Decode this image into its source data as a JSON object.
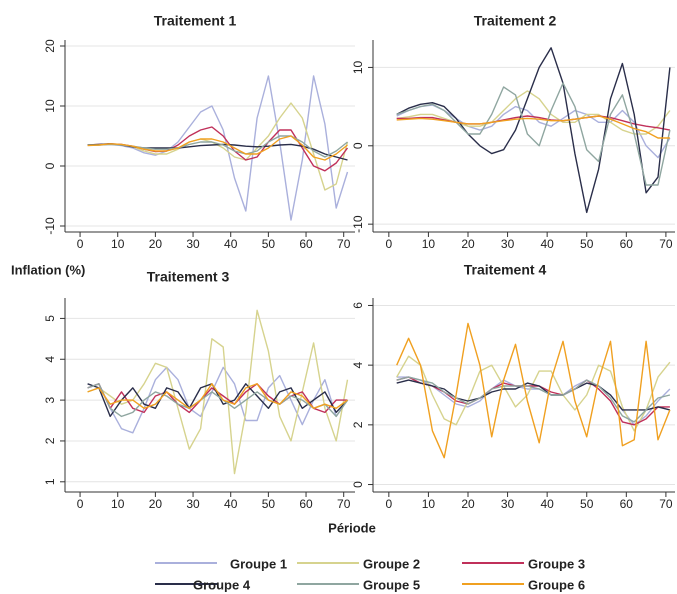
{
  "chart_data": [
    {
      "type": "line",
      "title": "Traitement 1",
      "x": [
        2,
        5,
        8,
        11,
        14,
        17,
        20,
        23,
        26,
        29,
        32,
        35,
        38,
        41,
        44,
        47,
        50,
        53,
        56,
        59,
        62,
        65,
        68,
        71
      ],
      "xlim": [
        -4,
        73
      ],
      "xticks": [
        0,
        10,
        20,
        30,
        40,
        50,
        60,
        70
      ],
      "ylim": [
        -11,
        21
      ],
      "yticks": [
        -10,
        0,
        10,
        20
      ],
      "grid": true,
      "series": [
        {
          "name": "Groupe 1",
          "color": "#aab0dc",
          "values": [
            3.5,
            3.5,
            3.6,
            3.4,
            3,
            2.2,
            1.8,
            2.5,
            4,
            6.5,
            9,
            10,
            6,
            -2,
            -7.5,
            8,
            15,
            4,
            -9,
            1,
            15,
            7,
            -7,
            -1
          ]
        },
        {
          "name": "Groupe 2",
          "color": "#d6d38e",
          "values": [
            3.5,
            3.5,
            3.7,
            3.6,
            3.2,
            2.5,
            2,
            2,
            2.8,
            4,
            4.5,
            4,
            3,
            1.5,
            1,
            3,
            5,
            8,
            10.5,
            8,
            2,
            -4,
            -3,
            4
          ]
        },
        {
          "name": "Groupe 3",
          "color": "#c0305a",
          "values": [
            3.5,
            3.6,
            3.7,
            3.6,
            3.3,
            2.8,
            2.4,
            2.5,
            3.5,
            5,
            6,
            6.5,
            5,
            2.5,
            1,
            1.5,
            4,
            6,
            6,
            3,
            0,
            -0.8,
            0.5,
            3
          ]
        },
        {
          "name": "Groupe 4",
          "color": "#2a2e4a",
          "values": [
            3.5,
            3.6,
            3.7,
            3.5,
            3.2,
            3,
            3,
            3,
            3,
            3.2,
            3.4,
            3.5,
            3.6,
            3.5,
            3.3,
            3.2,
            3.3,
            3.5,
            3.6,
            3.3,
            2.8,
            2,
            1.5,
            1
          ]
        },
        {
          "name": "Groupe 5",
          "color": "#8fa6a0",
          "values": [
            3.5,
            3.5,
            3.6,
            3.5,
            3.3,
            3,
            2.8,
            2.8,
            3,
            3.6,
            4,
            4,
            3.5,
            2.5,
            2,
            2.5,
            4,
            5,
            5,
            4,
            2.5,
            1.5,
            2.5,
            4
          ]
        },
        {
          "name": "Groupe 6",
          "color": "#f0a020",
          "values": [
            3.4,
            3.5,
            3.7,
            3.6,
            3.3,
            2.8,
            2.5,
            2.5,
            3,
            4,
            4.5,
            4.5,
            4,
            3,
            2,
            2,
            3,
            4.5,
            5,
            3.5,
            1.5,
            1,
            2,
            3.5
          ]
        }
      ]
    },
    {
      "type": "line",
      "title": "Traitement 2",
      "x": [
        2,
        5,
        8,
        11,
        14,
        17,
        20,
        23,
        26,
        29,
        32,
        35,
        38,
        41,
        44,
        47,
        50,
        53,
        56,
        59,
        62,
        65,
        68,
        71
      ],
      "xlim": [
        -4,
        72.3
      ],
      "xticks": [
        0,
        10,
        20,
        30,
        40,
        50,
        60,
        70
      ],
      "ylim": [
        -11,
        13.5
      ],
      "yticks": [
        -10,
        0,
        10
      ],
      "grid": true,
      "series": [
        {
          "color": "#aab0dc",
          "values": [
            3.8,
            4.5,
            5,
            5.2,
            4.5,
            3.5,
            2.5,
            2,
            2.5,
            4,
            5,
            4.5,
            3,
            2.5,
            3.5,
            4.5,
            4,
            3,
            3,
            4.5,
            3,
            0,
            -1.5,
            1
          ]
        },
        {
          "color": "#d6d38e",
          "values": [
            3.5,
            3.7,
            4,
            4,
            3.5,
            3,
            2.5,
            2.5,
            3,
            4.5,
            6,
            7,
            6,
            4,
            3,
            3,
            4,
            4,
            3,
            2,
            1.5,
            1.5,
            2.5,
            4.5
          ]
        },
        {
          "color": "#c0305a",
          "values": [
            3.5,
            3.5,
            3.6,
            3.6,
            3.3,
            3,
            2.8,
            2.8,
            3,
            3.3,
            3.6,
            3.8,
            3.6,
            3.3,
            3.2,
            3.4,
            3.6,
            3.8,
            3.6,
            3.2,
            2.8,
            2.5,
            2.3,
            2
          ]
        },
        {
          "color": "#2a2e4a",
          "values": [
            4,
            4.8,
            5.3,
            5.5,
            5,
            3.5,
            1.5,
            0,
            -1,
            -0.5,
            2,
            6,
            10,
            12.5,
            8,
            -1,
            -8.5,
            -3,
            6,
            10.5,
            4,
            -6,
            -4,
            10
          ]
        },
        {
          "color": "#8fa6a0",
          "values": [
            4,
            4.5,
            5,
            5.3,
            4.5,
            3,
            1.5,
            1.5,
            4,
            7.5,
            6.5,
            1.5,
            0,
            4.5,
            8,
            5,
            -0.5,
            -2,
            4,
            6.5,
            1.5,
            -5,
            -5,
            2
          ]
        },
        {
          "color": "#f0a020",
          "values": [
            3.3,
            3.4,
            3.5,
            3.4,
            3.2,
            3,
            2.8,
            2.8,
            3,
            3.2,
            3.4,
            3.5,
            3.4,
            3.2,
            3.2,
            3.4,
            3.6,
            3.8,
            3.4,
            2.8,
            2.2,
            1.8,
            1,
            1
          ]
        }
      ]
    },
    {
      "type": "line",
      "title": "Traitement 3",
      "ylabel": "Inflation (%)",
      "xlabel": "Période",
      "x": [
        2,
        5,
        8,
        11,
        14,
        17,
        20,
        23,
        26,
        29,
        32,
        35,
        38,
        41,
        44,
        47,
        50,
        53,
        56,
        59,
        62,
        65,
        68,
        71
      ],
      "xlim": [
        -4,
        73
      ],
      "xticks": [
        0,
        10,
        20,
        30,
        40,
        50,
        60,
        70
      ],
      "ylim": [
        0.75,
        5.5
      ],
      "yticks": [
        1,
        2,
        3,
        4,
        5
      ],
      "grid": true,
      "series": [
        {
          "color": "#aab0dc",
          "values": [
            3.3,
            3.4,
            2.8,
            2.3,
            2.2,
            2.8,
            3.5,
            3.8,
            3.5,
            2.8,
            2.6,
            3.2,
            3.8,
            3.4,
            2.5,
            2.5,
            3.3,
            3.6,
            3,
            2.4,
            3,
            3.5,
            2.6,
            3
          ]
        },
        {
          "color": "#d6d38e",
          "values": [
            3.2,
            3.3,
            3.1,
            2.9,
            3,
            3.4,
            3.9,
            3.8,
            2.8,
            1.8,
            2.3,
            4.5,
            4.3,
            1.2,
            2.7,
            5.2,
            4.2,
            2.6,
            2,
            3.2,
            4.4,
            2.8,
            2,
            3.5
          ]
        },
        {
          "color": "#c0305a",
          "values": [
            3.3,
            3.4,
            2.8,
            3.2,
            2.8,
            2.7,
            3.1,
            3.2,
            2.9,
            2.7,
            3,
            3.3,
            3.1,
            2.9,
            3.2,
            3.4,
            3.1,
            2.9,
            3.1,
            3.2,
            2.8,
            2.7,
            3,
            3
          ]
        },
        {
          "color": "#2a2e4a",
          "values": [
            3.4,
            3.3,
            2.6,
            3,
            3.3,
            2.9,
            2.8,
            3.3,
            3.2,
            2.8,
            3.3,
            3.4,
            2.9,
            3,
            3.4,
            3.1,
            2.8,
            3.2,
            3.3,
            2.8,
            3,
            3.2,
            2.7,
            3
          ]
        },
        {
          "color": "#8fa6a0",
          "values": [
            3.3,
            3.4,
            2.8,
            2.6,
            2.7,
            3,
            3.2,
            3.1,
            2.9,
            2.8,
            3,
            3.2,
            3,
            2.8,
            3,
            3.2,
            3,
            2.9,
            3.1,
            3,
            2.8,
            2.9,
            2.6,
            3
          ]
        },
        {
          "color": "#f0a020",
          "values": [
            3.2,
            3.3,
            2.9,
            3,
            3,
            2.8,
            2.9,
            3.2,
            3,
            2.8,
            3,
            3.4,
            3,
            2.9,
            3.3,
            3.4,
            3,
            2.9,
            3.2,
            3.1,
            2.8,
            2.9,
            2.8,
            3
          ]
        }
      ]
    },
    {
      "type": "line",
      "title": "Traitement 4",
      "x": [
        2,
        5,
        8,
        11,
        14,
        17,
        20,
        23,
        26,
        29,
        32,
        35,
        38,
        41,
        44,
        47,
        50,
        53,
        56,
        59,
        62,
        65,
        68,
        71
      ],
      "xlim": [
        -4,
        72.3
      ],
      "xticks": [
        0,
        10,
        20,
        30,
        40,
        50,
        60,
        70
      ],
      "ylim": [
        -0.25,
        6.25
      ],
      "yticks": [
        0,
        2,
        4,
        6
      ],
      "grid": true,
      "series": [
        {
          "color": "#aab0dc",
          "values": [
            3.6,
            3.6,
            3.5,
            3.3,
            3,
            2.7,
            2.6,
            2.8,
            3.2,
            3.5,
            3.3,
            3.2,
            3.2,
            3,
            3,
            3.3,
            3.5,
            3.3,
            3,
            2.5,
            2,
            2.3,
            2.8,
            3.2
          ]
        },
        {
          "color": "#d6d38e",
          "values": [
            3.6,
            4.3,
            4,
            3,
            2.2,
            2,
            2.8,
            3.8,
            4,
            3.3,
            2.6,
            3,
            3.8,
            3.8,
            3,
            2.5,
            3,
            4,
            3.8,
            2.6,
            1.8,
            2.5,
            3.6,
            4.1
          ]
        },
        {
          "color": "#c0305a",
          "values": [
            3.5,
            3.6,
            3.4,
            3.3,
            3.1,
            2.8,
            2.7,
            2.9,
            3.2,
            3.4,
            3.3,
            3.3,
            3.3,
            3.1,
            3,
            3.2,
            3.5,
            3.2,
            2.8,
            2.1,
            2,
            2.2,
            2.6,
            2.6
          ]
        },
        {
          "color": "#2a2e4a",
          "values": [
            3.4,
            3.5,
            3.4,
            3.3,
            3.2,
            2.9,
            2.8,
            2.9,
            3.1,
            3.2,
            3.2,
            3.4,
            3.3,
            3,
            3,
            3.2,
            3.4,
            3.3,
            3,
            2.5,
            2.5,
            2.5,
            2.6,
            2.5
          ]
        },
        {
          "color": "#8fa6a0",
          "values": [
            3.5,
            3.6,
            3.5,
            3.4,
            3.1,
            2.9,
            2.7,
            2.9,
            3.2,
            3.3,
            3.3,
            3.3,
            3.2,
            3,
            3,
            3.2,
            3.5,
            3.3,
            2.9,
            2.3,
            2.1,
            2.5,
            2.9,
            3
          ]
        },
        {
          "color": "#f0a020",
          "values": [
            4,
            4.9,
            4,
            1.8,
            0.9,
            3,
            5.4,
            4,
            1.6,
            3.5,
            4.7,
            2.8,
            1.4,
            3.5,
            4.8,
            2.8,
            1.6,
            3.5,
            4.8,
            1.3,
            1.5,
            4.8,
            1.5,
            2.5
          ]
        }
      ]
    }
  ]
}
